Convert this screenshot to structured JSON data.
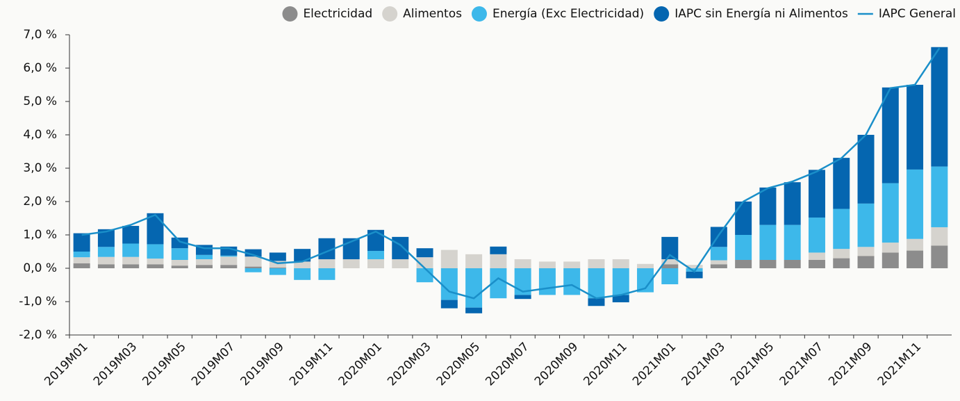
{
  "chart_data": {
    "type": "bar",
    "stacked": true,
    "categories": [
      "2019M01",
      null,
      "2019M03",
      null,
      "2019M05",
      null,
      "2019M07",
      null,
      "2019M09",
      null,
      "2019M11",
      null,
      "2020M01",
      null,
      "2020M03",
      null,
      "2020M05",
      null,
      "2020M07",
      null,
      "2020M09",
      null,
      "2020M11",
      null,
      "2021M01",
      null,
      "2021M03",
      null,
      "2021M05",
      null,
      "2021M07",
      null,
      "2021M09",
      null,
      "2021M11",
      null
    ],
    "series": [
      {
        "name": "Electricidad",
        "color": "#8c8c8c",
        "values": [
          0.15,
          0.12,
          0.12,
          0.12,
          0.08,
          0.1,
          0.1,
          0.05,
          0.02,
          0,
          0,
          0,
          0,
          0,
          0,
          0,
          0,
          0,
          0,
          0,
          0,
          0,
          0,
          0,
          0.12,
          0,
          0.12,
          0.25,
          0.25,
          0.25,
          0.25,
          0.3,
          0.37,
          0.47,
          0.53,
          0.68
        ]
      },
      {
        "name": "Alimentos",
        "color": "#d5d3ce",
        "values": [
          0.18,
          0.22,
          0.22,
          0.17,
          0.17,
          0.17,
          0.25,
          0.3,
          0.2,
          0.2,
          0.27,
          0.27,
          0.27,
          0.27,
          0.33,
          0.55,
          0.42,
          0.42,
          0.27,
          0.2,
          0.2,
          0.27,
          0.27,
          0.13,
          0.15,
          0.1,
          0.12,
          0,
          0,
          0,
          0.22,
          0.28,
          0.27,
          0.3,
          0.35,
          0.55
        ]
      },
      {
        "name": "Energía (Exc Electricidad)",
        "color": "#3db8ea",
        "values": [
          0.17,
          0.3,
          0.4,
          0.43,
          0.35,
          0.13,
          0.03,
          -0.12,
          -0.2,
          -0.35,
          -0.35,
          0,
          0.25,
          0,
          -0.42,
          -0.95,
          -1.18,
          -0.9,
          -0.8,
          -0.8,
          -0.8,
          -0.9,
          -0.8,
          -0.72,
          -0.48,
          -0.1,
          0.4,
          0.75,
          1.05,
          1.05,
          1.05,
          1.2,
          1.3,
          1.78,
          2.08,
          1.82
        ]
      },
      {
        "name": "IAPC sin Energía ni Alimentos",
        "color": "#0566b0",
        "values": [
          0.55,
          0.53,
          0.53,
          0.93,
          0.32,
          0.3,
          0.27,
          0.22,
          0.25,
          0.38,
          0.63,
          0.63,
          0.63,
          0.67,
          0.27,
          -0.25,
          -0.17,
          0.23,
          -0.12,
          0,
          0,
          -0.23,
          -0.22,
          0,
          0.67,
          -0.2,
          0.6,
          1.0,
          1.12,
          1.28,
          1.43,
          1.53,
          2.06,
          2.87,
          2.54,
          3.58
        ]
      },
      {
        "name": "IAPC General",
        "type": "line",
        "color": "#1a8fc9",
        "values": [
          1.0,
          1.1,
          1.3,
          1.6,
          0.8,
          0.6,
          0.6,
          0.4,
          0.15,
          0.2,
          0.5,
          0.8,
          1.1,
          0.7,
          0.0,
          -0.7,
          -0.9,
          -0.3,
          -0.7,
          -0.6,
          -0.5,
          -0.9,
          -0.8,
          -0.6,
          0.4,
          -0.1,
          1.0,
          2.0,
          2.4,
          2.6,
          2.9,
          3.3,
          4.0,
          5.4,
          5.5,
          6.6
        ]
      }
    ],
    "ylim": [
      -2,
      7
    ],
    "yticks": [
      {
        "value": -2,
        "label": "-2,0 %"
      },
      {
        "value": -1,
        "label": "-1,0 %"
      },
      {
        "value": 0,
        "label": "0,0 %"
      },
      {
        "value": 1,
        "label": "1,0 %"
      },
      {
        "value": 2,
        "label": "2,0 %"
      },
      {
        "value": 3,
        "label": "3,0 %"
      },
      {
        "value": 4,
        "label": "4,0 %"
      },
      {
        "value": 5,
        "label": "5,0 %"
      },
      {
        "value": 6,
        "label": "6,0 %"
      },
      {
        "value": 7,
        "label": "7,0 %"
      }
    ],
    "legend": "top-right"
  }
}
